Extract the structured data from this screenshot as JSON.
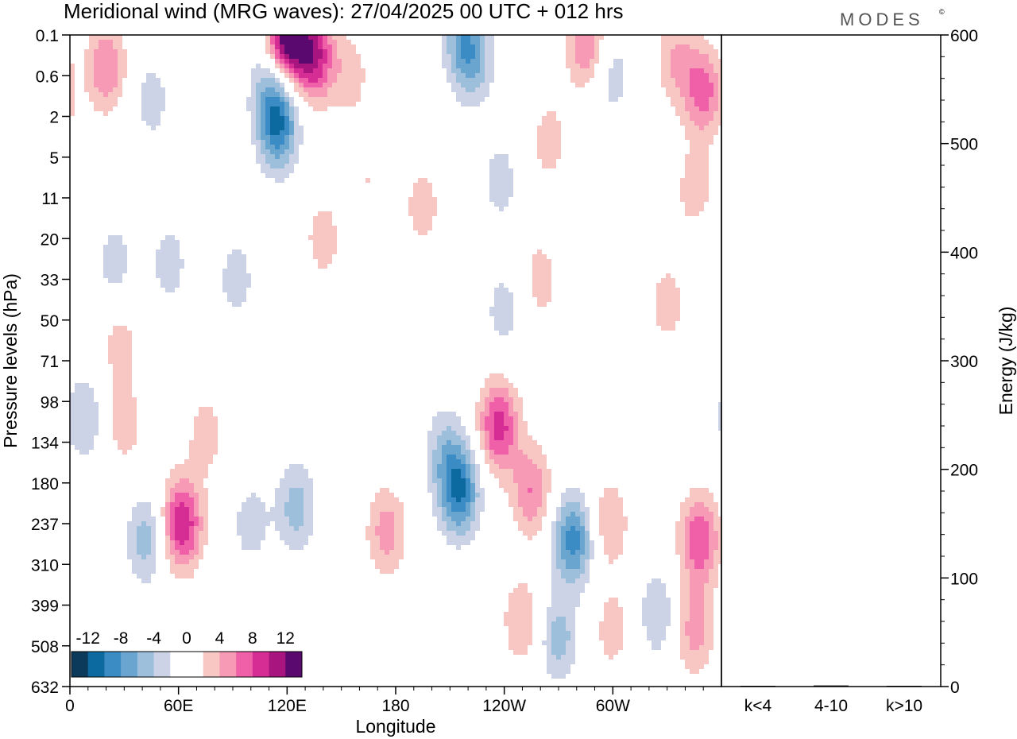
{
  "header": {
    "title": "Meridional wind (MRG waves):  27/04/2025  00 UTC  + 012 hrs",
    "brand": "MODES",
    "brand_mark": "©"
  },
  "colors": {
    "neg": [
      "#0b3a5a",
      "#0d6aa0",
      "#3b8cc4",
      "#6aa5d0",
      "#9ebfdc",
      "#cdd3e6"
    ],
    "pos": [
      "#f9c7c3",
      "#f79ab5",
      "#ef60a8",
      "#d52d94",
      "#a8157e",
      "#5a0a6e"
    ]
  },
  "chart_data": [
    {
      "type": "heatmap",
      "title": "Meridional wind (MRG waves):  27/04/2025  00 UTC  + 012 hrs",
      "xlabel": "Longitude",
      "ylabel": "Pressure levels (hPa)",
      "x_ticks": [
        "0",
        "60E",
        "120E",
        "180",
        "120W",
        "60W"
      ],
      "x_tick_degrees": [
        0,
        60,
        120,
        180,
        240,
        300
      ],
      "x_range_degrees": [
        0,
        360
      ],
      "y_ticks": [
        "0.1",
        "0.6",
        "2",
        "5",
        "11",
        "20",
        "33",
        "50",
        "71",
        "98",
        "134",
        "180",
        "237",
        "310",
        "399",
        "508",
        "632"
      ],
      "colorbar": {
        "levels": [
          -12,
          -8,
          -4,
          0,
          4,
          8,
          12
        ],
        "labels": [
          "-12",
          "-8",
          "-4",
          "0",
          "4",
          "8",
          "12"
        ],
        "range": [
          -14,
          14
        ]
      },
      "features": [
        {
          "lon": 20,
          "lev": 0.8,
          "value": 6
        },
        {
          "lon": 45,
          "lev": 1.6,
          "value": -3
        },
        {
          "lon": 55,
          "lev": 5.6,
          "value": -3
        },
        {
          "lon": 62,
          "lev": 12.0,
          "value": 10
        },
        {
          "lon": 42,
          "lev": 12.4,
          "value": -5
        },
        {
          "lon": 75,
          "lev": 9.8,
          "value": 3
        },
        {
          "lon": 8,
          "lev": 9.4,
          "value": -4
        },
        {
          "lon": 30,
          "lev": 9.6,
          "value": 3
        },
        {
          "lon": 28,
          "lev": 7.6,
          "value": 3
        },
        {
          "lon": 115,
          "lev": 2.2,
          "value": -10
        },
        {
          "lon": 120,
          "lev": 0.05,
          "value": 14
        },
        {
          "lon": 135,
          "lev": 0.5,
          "value": 10
        },
        {
          "lon": 110,
          "lev": 1.2,
          "value": -4
        },
        {
          "lon": 155,
          "lev": 1.0,
          "value": 3
        },
        {
          "lon": 165,
          "lev": 3.6,
          "value": 2
        },
        {
          "lon": 140,
          "lev": 5.0,
          "value": 3
        },
        {
          "lon": 125,
          "lev": 11.6,
          "value": -5
        },
        {
          "lon": 100,
          "lev": 12.0,
          "value": -3
        },
        {
          "lon": 175,
          "lev": 12.2,
          "value": 5
        },
        {
          "lon": 195,
          "lev": 4.2,
          "value": 3
        },
        {
          "lon": 218,
          "lev": 0.2,
          "value": -7
        },
        {
          "lon": 225,
          "lev": 0.8,
          "value": -3
        },
        {
          "lon": 238,
          "lev": 3.6,
          "value": -3
        },
        {
          "lon": 215,
          "lev": 11.2,
          "value": -10
        },
        {
          "lon": 207,
          "lev": 10.2,
          "value": -4
        },
        {
          "lon": 237,
          "lev": 9.6,
          "value": 9
        },
        {
          "lon": 255,
          "lev": 11.2,
          "value": 6
        },
        {
          "lon": 250,
          "lev": 14.4,
          "value": 4
        },
        {
          "lon": 278,
          "lev": 12.4,
          "value": -9
        },
        {
          "lon": 270,
          "lev": 14.8,
          "value": -5
        },
        {
          "lon": 298,
          "lev": 12.0,
          "value": 4
        },
        {
          "lon": 300,
          "lev": 14.6,
          "value": 3
        },
        {
          "lon": 325,
          "lev": 14.2,
          "value": -4
        },
        {
          "lon": 348,
          "lev": 12.4,
          "value": 8
        },
        {
          "lon": 345,
          "lev": 14.6,
          "value": 5
        },
        {
          "lon": 350,
          "lev": 1.4,
          "value": 7
        },
        {
          "lon": 335,
          "lev": 0.6,
          "value": 4
        },
        {
          "lon": 345,
          "lev": 3.8,
          "value": 3
        },
        {
          "lon": 285,
          "lev": 0.2,
          "value": 6
        },
        {
          "lon": 300,
          "lev": 1.0,
          "value": -3
        },
        {
          "lon": 265,
          "lev": 2.6,
          "value": 3
        },
        {
          "lon": 240,
          "lev": 6.8,
          "value": -3
        },
        {
          "lon": 260,
          "lev": 6.0,
          "value": 3
        },
        {
          "lon": 92,
          "lev": 6.0,
          "value": -3
        },
        {
          "lon": 25,
          "lev": 5.6,
          "value": -3
        },
        {
          "lon": 330,
          "lev": 6.6,
          "value": 3
        }
      ]
    },
    {
      "type": "bar",
      "ylabel": "Energy (J/kg)",
      "categories": [
        "k<4",
        "4-10",
        "k>10"
      ],
      "values": [
        0,
        1,
        0
      ],
      "ylim": [
        0,
        600
      ],
      "y_ticks": [
        0,
        100,
        200,
        300,
        400,
        500,
        600
      ]
    }
  ]
}
